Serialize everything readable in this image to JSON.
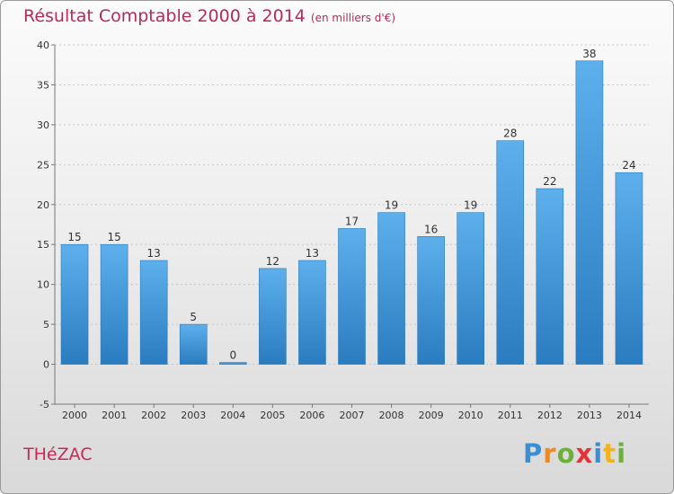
{
  "title": "Résultat Comptable 2000 à 2014",
  "title_unit": "(en milliers d'€)",
  "town": "THéZAC",
  "brand": {
    "letters": [
      "P",
      "r",
      "o",
      "x",
      "i",
      "t",
      "i"
    ],
    "colors": [
      "#3a8fd4",
      "#f08a1c",
      "#6cb23a",
      "#e2333a",
      "#3a8fd4",
      "#f0b51c",
      "#6cb23a"
    ]
  },
  "chart_data": {
    "type": "bar",
    "categories": [
      "2000",
      "2001",
      "2002",
      "2003",
      "2004",
      "2005",
      "2006",
      "2007",
      "2008",
      "2009",
      "2010",
      "2011",
      "2012",
      "2013",
      "2014"
    ],
    "values": [
      15,
      15,
      13,
      5,
      0,
      12,
      13,
      17,
      19,
      16,
      19,
      28,
      22,
      38,
      24
    ],
    "ylim": [
      -5,
      40
    ],
    "yticks": [
      -5,
      0,
      5,
      10,
      15,
      20,
      25,
      30,
      35,
      40
    ],
    "grid": true,
    "bar_color": "#4a9fe0"
  }
}
